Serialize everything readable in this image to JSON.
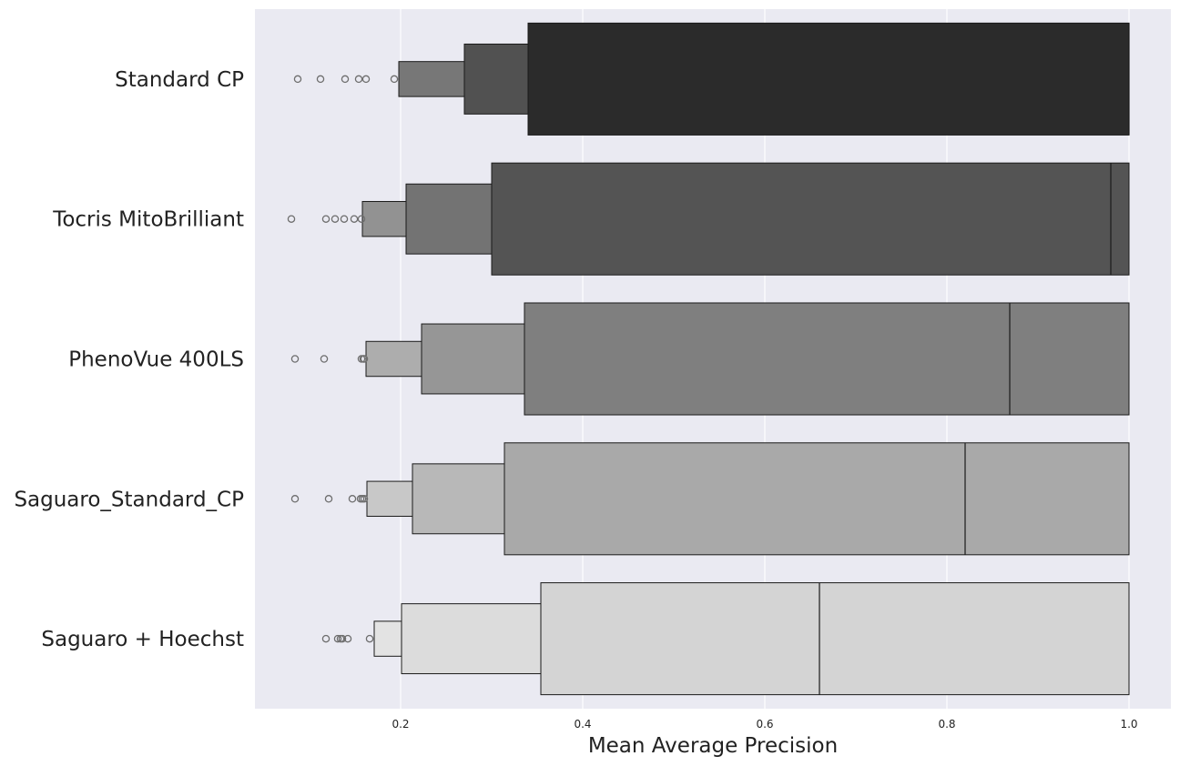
{
  "chart_data": {
    "type": "boxen",
    "orientation": "horizontal",
    "xlabel": "Mean Average Precision",
    "ylabel": "",
    "xlim": [
      0.04,
      1.046
    ],
    "x_ticks": [
      0.2,
      0.4,
      0.6,
      0.8,
      1.0
    ],
    "x_tick_labels": [
      "0.2",
      "0.4",
      "0.6",
      "0.8",
      "1.0"
    ],
    "grid": true,
    "background": "#eaeaf2",
    "grid_color": "#ffffff",
    "categories": [
      "Standard CP",
      "Tocris MitoBrilliant",
      "PhenoVue 400LS",
      "Saguaro_Standard_CP",
      "Saguaro + Hoechst"
    ],
    "series": [
      {
        "category": "Standard CP",
        "color": "#2b2b2b",
        "median": 1.0,
        "boxes": [
          {
            "low": 0.34,
            "high": 1.0
          },
          {
            "low": 0.27,
            "high": 0.34
          },
          {
            "low": 0.198,
            "high": 0.27
          }
        ],
        "outliers": [
          0.087,
          0.112,
          0.139,
          0.154,
          0.162,
          0.193
        ]
      },
      {
        "category": "Tocris MitoBrilliant",
        "color": "#545454",
        "median": 0.98,
        "boxes": [
          {
            "low": 0.3,
            "high": 1.0
          },
          {
            "low": 0.206,
            "high": 0.3
          },
          {
            "low": 0.158,
            "high": 0.206
          }
        ],
        "outliers": [
          0.08,
          0.118,
          0.128,
          0.138,
          0.149,
          0.157
        ]
      },
      {
        "category": "PhenoVue 400LS",
        "color": "#7f7f7f",
        "median": 0.869,
        "boxes": [
          {
            "low": 0.336,
            "high": 1.0
          },
          {
            "low": 0.223,
            "high": 0.336
          },
          {
            "low": 0.162,
            "high": 0.223
          }
        ],
        "outliers": [
          0.084,
          0.116,
          0.157,
          0.159,
          0.16
        ]
      },
      {
        "category": "Saguaro_Standard_CP",
        "color": "#a9a9a9",
        "median": 0.82,
        "boxes": [
          {
            "low": 0.314,
            "high": 1.0
          },
          {
            "low": 0.213,
            "high": 0.314
          },
          {
            "low": 0.163,
            "high": 0.213
          }
        ],
        "outliers": [
          0.084,
          0.121,
          0.147,
          0.156,
          0.158,
          0.16
        ]
      },
      {
        "category": "Saguaro + Hoechst",
        "color": "#d4d4d4",
        "median": 0.66,
        "boxes": [
          {
            "low": 0.354,
            "high": 1.0
          },
          {
            "low": 0.201,
            "high": 0.354
          },
          {
            "low": 0.171,
            "high": 0.201
          }
        ],
        "outliers": [
          0.118,
          0.131,
          0.134,
          0.136,
          0.142,
          0.166
        ]
      }
    ]
  }
}
